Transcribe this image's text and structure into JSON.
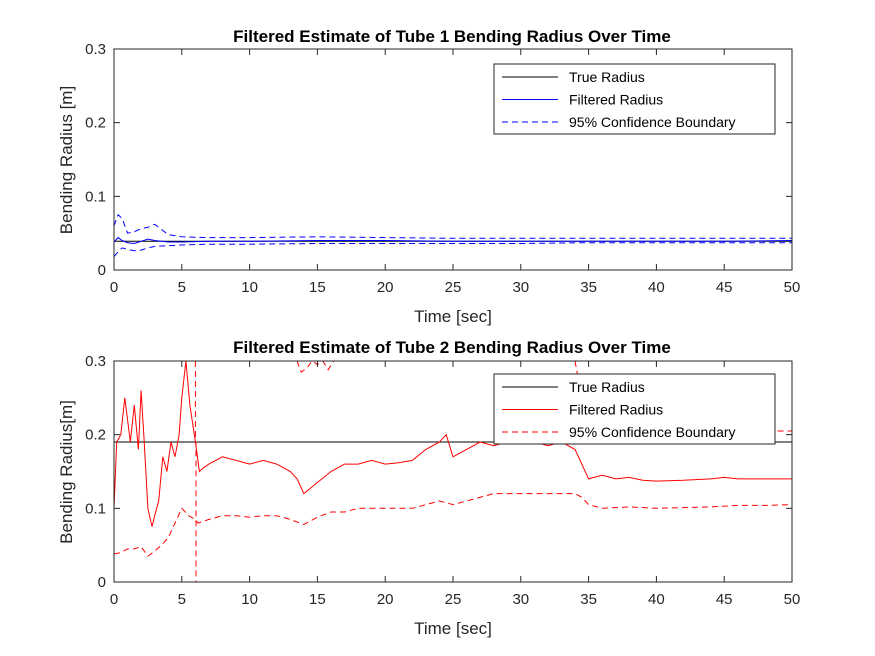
{
  "chart_data": [
    {
      "type": "line",
      "title": "Filtered Estimate of Tube 1 Bending Radius Over Time",
      "xlabel": "Time [sec]",
      "ylabel": "Bending Radius [m]",
      "xlim": [
        0,
        50
      ],
      "ylim": [
        0,
        0.3
      ],
      "xticks": [
        "0",
        "5",
        "10",
        "15",
        "20",
        "25",
        "30",
        "35",
        "40",
        "45",
        "50"
      ],
      "yticks": [
        "0",
        "0.1",
        "0.2",
        "0.3"
      ],
      "grid": false,
      "legend_position": "top-right",
      "series": [
        {
          "name": "True Radius",
          "color": "#000000",
          "style": "solid",
          "x": [
            0,
            50
          ],
          "y": [
            0.039,
            0.039
          ]
        },
        {
          "name": "Filtered Radius",
          "color": "#0000ff",
          "style": "solid",
          "x": [
            0,
            0.3,
            0.6,
            1.0,
            1.5,
            2.0,
            2.5,
            3.0,
            4.0,
            5.0,
            7,
            10,
            15,
            20,
            25,
            30,
            35,
            40,
            45,
            50
          ],
          "y": [
            0.038,
            0.044,
            0.04,
            0.037,
            0.036,
            0.039,
            0.042,
            0.04,
            0.038,
            0.038,
            0.039,
            0.039,
            0.04,
            0.04,
            0.039,
            0.039,
            0.039,
            0.039,
            0.039,
            0.04
          ]
        },
        {
          "name": "95% Confidence Boundary",
          "color": "#0000ff",
          "style": "dashed",
          "x": [
            0,
            0.3,
            0.6,
            1.0,
            1.5,
            2.0,
            2.5,
            3.0,
            3.5,
            4.0,
            5.0,
            7,
            10,
            15,
            20,
            25,
            30,
            35,
            40,
            45,
            50
          ],
          "y": [
            0.06,
            0.075,
            0.07,
            0.05,
            0.052,
            0.056,
            0.058,
            0.062,
            0.055,
            0.048,
            0.045,
            0.044,
            0.044,
            0.045,
            0.044,
            0.043,
            0.043,
            0.043,
            0.043,
            0.043,
            0.043
          ]
        },
        {
          "name": "",
          "color": "#0000ff",
          "style": "dashed",
          "x": [
            0,
            0.3,
            0.6,
            1.0,
            1.5,
            2.0,
            2.5,
            3.0,
            4.0,
            5.0,
            7,
            10,
            15,
            20,
            25,
            30,
            35,
            40,
            45,
            50
          ],
          "y": [
            0.018,
            0.025,
            0.03,
            0.028,
            0.026,
            0.027,
            0.03,
            0.032,
            0.033,
            0.034,
            0.035,
            0.035,
            0.036,
            0.036,
            0.036,
            0.036,
            0.037,
            0.037,
            0.037,
            0.037
          ]
        }
      ]
    },
    {
      "type": "line",
      "title": "Filtered Estimate of Tube 2 Bending Radius Over Time",
      "xlabel": "Time [sec]",
      "ylabel": "Bending Radius[m]",
      "xlim": [
        0,
        50
      ],
      "ylim": [
        0,
        0.3
      ],
      "xticks": [
        "0",
        "5",
        "10",
        "15",
        "20",
        "25",
        "30",
        "35",
        "40",
        "45",
        "50"
      ],
      "yticks": [
        "0",
        "0.1",
        "0.2",
        "0.3"
      ],
      "grid": false,
      "legend_position": "top-right",
      "series": [
        {
          "name": "True Radius",
          "color": "#000000",
          "style": "solid",
          "x": [
            0,
            50
          ],
          "y": [
            0.19,
            0.19
          ]
        },
        {
          "name": "Filtered Radius",
          "color": "#ff0000",
          "style": "solid",
          "x": [
            0,
            0.2,
            0.5,
            0.8,
            1.0,
            1.2,
            1.5,
            1.8,
            2.0,
            2.2,
            2.5,
            2.8,
            3.0,
            3.3,
            3.6,
            3.9,
            4.2,
            4.5,
            4.8,
            5.0,
            5.3,
            5.6,
            6.0,
            6.3,
            6.6,
            7,
            8,
            9,
            10,
            11,
            12,
            13,
            13.5,
            14,
            15,
            16,
            17,
            18,
            19,
            20,
            21,
            22,
            23,
            24,
            24.5,
            25,
            26,
            27,
            28,
            29,
            30,
            31,
            32,
            33,
            34,
            34.5,
            35,
            36,
            37,
            38,
            39,
            40,
            42,
            44,
            45,
            46,
            48,
            50
          ],
          "y": [
            0.1,
            0.19,
            0.2,
            0.25,
            0.22,
            0.19,
            0.24,
            0.18,
            0.26,
            0.2,
            0.1,
            0.075,
            0.09,
            0.11,
            0.17,
            0.15,
            0.19,
            0.17,
            0.2,
            0.25,
            0.3,
            0.24,
            0.19,
            0.15,
            0.155,
            0.16,
            0.17,
            0.165,
            0.16,
            0.165,
            0.16,
            0.15,
            0.14,
            0.12,
            0.135,
            0.15,
            0.16,
            0.16,
            0.165,
            0.16,
            0.162,
            0.165,
            0.18,
            0.19,
            0.2,
            0.17,
            0.18,
            0.19,
            0.185,
            0.19,
            0.19,
            0.19,
            0.185,
            0.19,
            0.18,
            0.16,
            0.14,
            0.145,
            0.14,
            0.142,
            0.138,
            0.137,
            0.138,
            0.14,
            0.142,
            0.14,
            0.14,
            0.14
          ]
        },
        {
          "name": "95% Confidence Boundary",
          "color": "#ff0000",
          "style": "dashed",
          "x": [
            0,
            0.5,
            1.0,
            1.5,
            2.0,
            2.5,
            3.0,
            3.5,
            4.0,
            4.5,
            5.0,
            5.5,
            6.0,
            6.2,
            7,
            8,
            9,
            10,
            11,
            12,
            13,
            14,
            15,
            16,
            17,
            18,
            20,
            22,
            24,
            25,
            26,
            28,
            30,
            32,
            33,
            34,
            34.5,
            35,
            36,
            38,
            40,
            42,
            44,
            46,
            48,
            50
          ],
          "y": [
            0.038,
            0.04,
            0.045,
            0.045,
            0.048,
            0.035,
            0.042,
            0.05,
            0.06,
            0.08,
            0.1,
            0.09,
            0.085,
            0.08,
            0.085,
            0.09,
            0.09,
            0.088,
            0.09,
            0.09,
            0.085,
            0.078,
            0.088,
            0.095,
            0.095,
            0.1,
            0.1,
            0.1,
            0.11,
            0.105,
            0.11,
            0.12,
            0.12,
            0.12,
            0.12,
            0.12,
            0.115,
            0.105,
            0.1,
            0.102,
            0.1,
            0.101,
            0.102,
            0.104,
            0.104,
            0.105
          ]
        },
        {
          "name": "",
          "color": "#ff0000",
          "style": "dashed",
          "x": [
            6.0,
            6.0,
            6.05,
            6.05
          ],
          "y": [
            0.3,
            0.19,
            0.19,
            0.0
          ]
        },
        {
          "name": "",
          "color": "#ff0000",
          "style": "dashed",
          "x": [
            13.5,
            13.8,
            14.2,
            14.6,
            15.0,
            15.4,
            15.8,
            16.2
          ],
          "y": [
            0.3,
            0.285,
            0.29,
            0.3,
            0.295,
            0.3,
            0.288,
            0.3
          ]
        },
        {
          "name": "",
          "color": "#ff0000",
          "style": "dashed",
          "x": [
            34.0,
            34.5,
            35,
            40,
            45,
            49,
            50
          ],
          "y": [
            0.3,
            0.25,
            0.22,
            0.21,
            0.208,
            0.205,
            0.205
          ]
        }
      ]
    }
  ]
}
